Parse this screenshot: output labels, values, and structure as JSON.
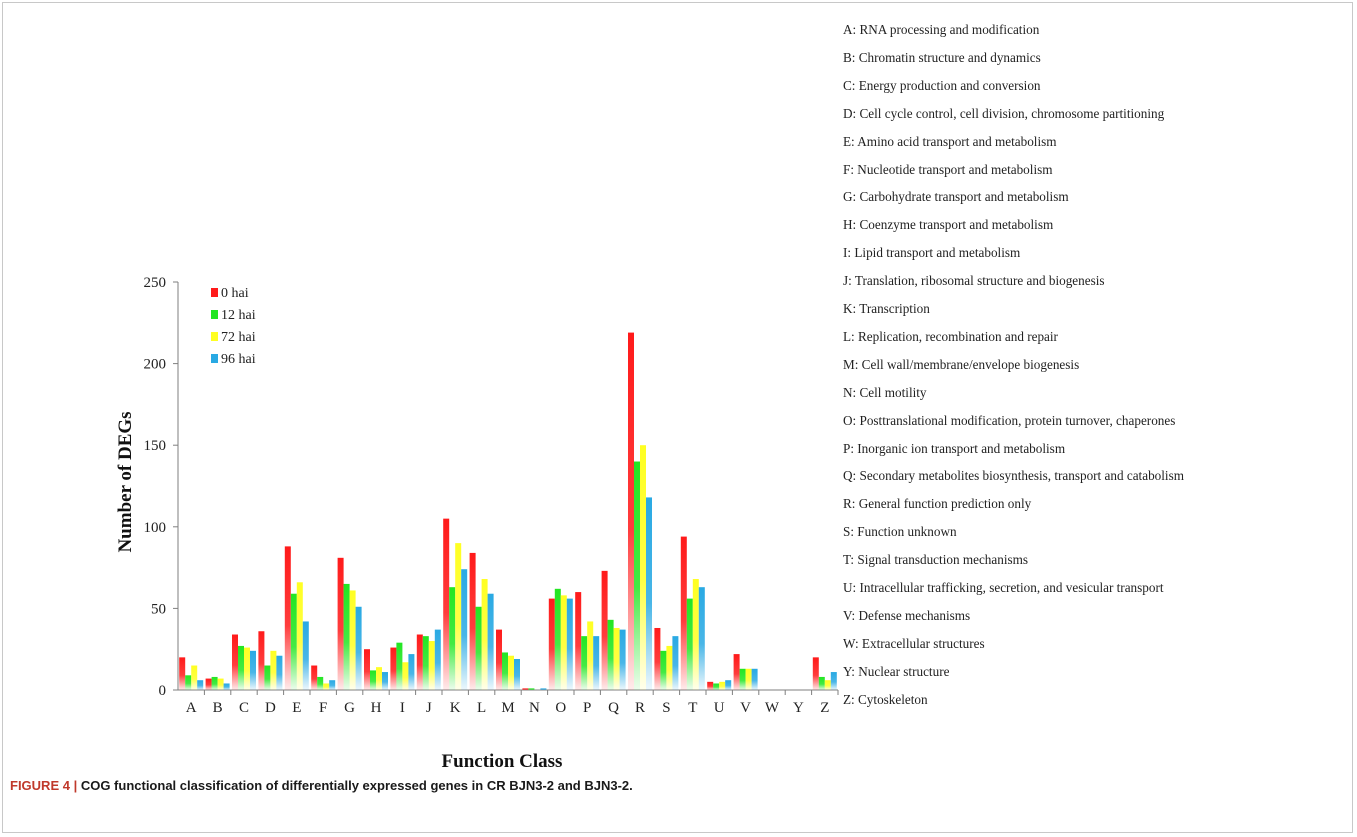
{
  "chart_data": {
    "type": "bar",
    "xlabel": "Function Class",
    "ylabel": "Number of DEGs",
    "ylim": [
      0,
      250
    ],
    "yticks": [
      0,
      50,
      100,
      150,
      200,
      250
    ],
    "grid": false,
    "legend_position": "top-left",
    "categories": [
      "A",
      "B",
      "C",
      "D",
      "E",
      "F",
      "G",
      "H",
      "I",
      "J",
      "K",
      "L",
      "M",
      "N",
      "O",
      "P",
      "Q",
      "R",
      "S",
      "T",
      "U",
      "V",
      "W",
      "Y",
      "Z"
    ],
    "series": [
      {
        "name": "0 hai",
        "color": "#ff1a1a",
        "values": [
          20,
          7,
          34,
          36,
          88,
          15,
          81,
          25,
          26,
          34,
          105,
          84,
          37,
          1,
          56,
          60,
          73,
          219,
          38,
          94,
          5,
          22,
          0,
          0,
          20
        ]
      },
      {
        "name": "12 hai",
        "color": "#22e622",
        "values": [
          9,
          8,
          27,
          15,
          59,
          8,
          65,
          12,
          29,
          33,
          63,
          51,
          23,
          1,
          62,
          33,
          43,
          140,
          24,
          56,
          4,
          13,
          0,
          0,
          8
        ]
      },
      {
        "name": "72 hai",
        "color": "#ffff22",
        "values": [
          15,
          7,
          26,
          24,
          66,
          4,
          61,
          14,
          17,
          30,
          90,
          68,
          21,
          0,
          58,
          42,
          38,
          150,
          27,
          68,
          5,
          13,
          0,
          0,
          6
        ]
      },
      {
        "name": "96 hai",
        "color": "#29a9e3",
        "values": [
          6,
          4,
          24,
          21,
          42,
          6,
          51,
          11,
          22,
          37,
          74,
          59,
          19,
          1,
          56,
          33,
          37,
          118,
          33,
          63,
          6,
          13,
          0,
          0,
          11
        ]
      }
    ]
  },
  "category_legend": [
    "A: RNA processing and modification",
    "B: Chromatin structure and dynamics",
    "C: Energy production and conversion",
    "D: Cell cycle control, cell division, chromosome partitioning",
    "E: Amino acid transport and metabolism",
    "F: Nucleotide transport and metabolism",
    "G: Carbohydrate transport and metabolism",
    "H: Coenzyme transport and metabolism",
    "I: Lipid transport and metabolism",
    "J: Translation, ribosomal structure and biogenesis",
    "K: Transcription",
    "L: Replication, recombination and repair",
    "M: Cell wall/membrane/envelope biogenesis",
    "N: Cell motility",
    "O: Posttranslational modification, protein turnover, chaperones",
    "P: Inorganic ion transport and metabolism",
    "Q: Secondary metabolites biosynthesis, transport and catabolism",
    "R: General function prediction only",
    "S: Function unknown",
    "T: Signal transduction mechanisms",
    "U: Intracellular trafficking, secretion, and vesicular transport",
    "V: Defense mechanisms",
    "W: Extracellular structures",
    "Y: Nuclear structure",
    "Z: Cytoskeleton"
  ],
  "caption": {
    "number": "FIGURE 4 |",
    "text": "COG functional classification of differentially expressed genes in CR BJN3-2 and BJN3-2."
  }
}
